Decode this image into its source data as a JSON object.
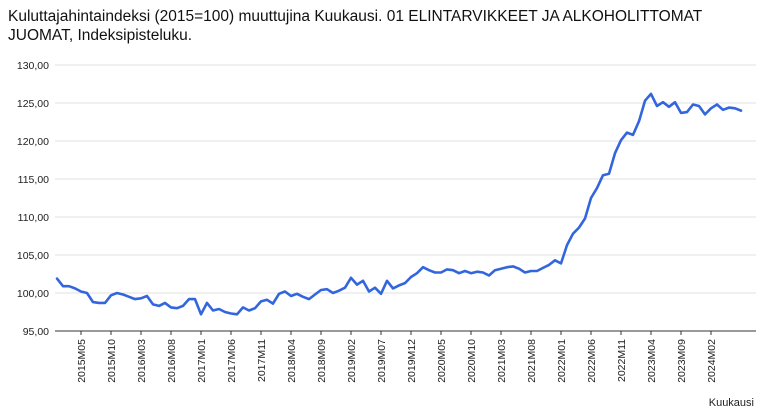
{
  "chart_data": {
    "type": "line",
    "title": "Kuluttajahintaindeksi (2015=100) muuttujina Kuukausi. 01 ELINTARVIKKEET JA ALKOHOLITTOMAT JUOMAT, Indeksipisteluku.",
    "xlabel": "Kuukausi",
    "ylabel": "",
    "ylim": [
      95,
      130
    ],
    "y_ticks": [
      "95,00",
      "100,00",
      "105,00",
      "110,00",
      "115,00",
      "120,00",
      "125,00",
      "130,00"
    ],
    "x_tick_labels": [
      "2015M05",
      "2015M10",
      "2016M03",
      "2016M08",
      "2017M01",
      "2017M06",
      "2017M11",
      "2018M04",
      "2018M09",
      "2019M02",
      "2019M07",
      "2019M12",
      "2020M05",
      "2020M10",
      "2021M03",
      "2021M08",
      "2022M01",
      "2022M06",
      "2022M11",
      "2023M04",
      "2023M09",
      "2024M02"
    ],
    "grid": true,
    "legend": "none",
    "colors": {
      "line": "#3366dd",
      "grid": "#e0e0e0",
      "axis": "#333333"
    },
    "series": [
      {
        "values": [
          101.9,
          100.9,
          100.9,
          100.6,
          100.2,
          100.0,
          98.8,
          98.7,
          98.7,
          99.7,
          100.0,
          99.8,
          99.5,
          99.2,
          99.3,
          99.6,
          98.5,
          98.3,
          98.7,
          98.1,
          98.0,
          98.3,
          99.2,
          99.2,
          97.2,
          98.7,
          97.7,
          97.9,
          97.5,
          97.3,
          97.2,
          98.1,
          97.7,
          98.0,
          98.9,
          99.1,
          98.6,
          99.9,
          100.2,
          99.6,
          99.9,
          99.5,
          99.2,
          99.8,
          100.4,
          100.5,
          100.0,
          100.3,
          100.7,
          102.0,
          101.1,
          101.6,
          100.2,
          100.7,
          99.9,
          101.6,
          100.6,
          101.0,
          101.3,
          102.1,
          102.6,
          103.4,
          103.0,
          102.7,
          102.7,
          103.1,
          103.0,
          102.6,
          102.9,
          102.6,
          102.8,
          102.7,
          102.3,
          103.0,
          103.2,
          103.4,
          103.5,
          103.2,
          102.7,
          102.9,
          102.9,
          103.3,
          103.7,
          104.3,
          103.9,
          106.3,
          107.8,
          108.6,
          109.8,
          112.5,
          113.8,
          115.5,
          115.7,
          118.4,
          120.1,
          121.1,
          120.8,
          122.6,
          125.3,
          126.2,
          124.6,
          125.1,
          124.5,
          125.1,
          123.7,
          123.8,
          124.8,
          124.6,
          123.5,
          124.3,
          124.8,
          124.1,
          124.4,
          124.3,
          124.0
        ]
      }
    ]
  }
}
